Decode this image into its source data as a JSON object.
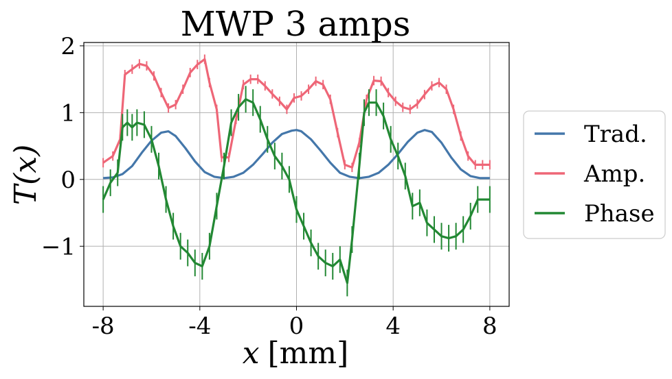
{
  "chart_data": {
    "type": "line",
    "title": "MWP 3 amps",
    "xlabel_var": "x",
    "xlabel_unit": "[mm]",
    "ylabel": "T(x)",
    "xlim": [
      -8.8,
      8.8
    ],
    "ylim": [
      -1.9,
      2.05
    ],
    "xticks": [
      -8,
      -4,
      0,
      4,
      8
    ],
    "xtick_labels": [
      "-8",
      "-4",
      "0",
      "4",
      "8"
    ],
    "yticks": [
      -1,
      0,
      1,
      2
    ],
    "ytick_labels": [
      "−1",
      "0",
      "1",
      "2"
    ],
    "grid": true,
    "legend_position": "outside right",
    "series": [
      {
        "name": "Trad.",
        "color": "#4477aa",
        "x": [
          -8,
          -7.6,
          -7.2,
          -6.8,
          -6.4,
          -6.0,
          -5.6,
          -5.3,
          -5.0,
          -4.6,
          -4.2,
          -3.8,
          -3.4,
          -3.0,
          -2.6,
          -2.2,
          -1.8,
          -1.4,
          -1.0,
          -0.6,
          -0.2,
          0,
          0.2,
          0.6,
          1.0,
          1.4,
          1.8,
          2.2,
          2.6,
          3.0,
          3.4,
          3.8,
          4.2,
          4.6,
          5.0,
          5.3,
          5.6,
          6.0,
          6.4,
          6.8,
          7.2,
          7.6,
          8
        ],
        "values": [
          0.02,
          0.03,
          0.08,
          0.2,
          0.4,
          0.58,
          0.7,
          0.72,
          0.65,
          0.47,
          0.27,
          0.11,
          0.04,
          0.02,
          0.04,
          0.1,
          0.22,
          0.38,
          0.55,
          0.68,
          0.73,
          0.74,
          0.72,
          0.6,
          0.43,
          0.25,
          0.1,
          0.04,
          0.02,
          0.04,
          0.1,
          0.22,
          0.38,
          0.56,
          0.7,
          0.74,
          0.71,
          0.55,
          0.33,
          0.15,
          0.05,
          0.02,
          0.02
        ]
      },
      {
        "name": "Amp.",
        "color": "#ee6677",
        "x": [
          -8,
          -7.6,
          -7.3,
          -7.1,
          -6.8,
          -6.5,
          -6.2,
          -5.9,
          -5.6,
          -5.3,
          -5.0,
          -4.7,
          -4.4,
          -4.1,
          -3.8,
          -3.6,
          -3.3,
          -3.1,
          -2.8,
          -2.5,
          -2.2,
          -1.9,
          -1.6,
          -1.3,
          -1.0,
          -0.7,
          -0.4,
          -0.1,
          0.2,
          0.5,
          0.8,
          1.1,
          1.4,
          1.7,
          2.0,
          2.3,
          2.6,
          2.9,
          3.2,
          3.5,
          3.8,
          4.1,
          4.4,
          4.7,
          5.0,
          5.3,
          5.6,
          5.9,
          6.2,
          6.5,
          6.8,
          7.1,
          7.4,
          7.7,
          8
        ],
        "values": [
          0.25,
          0.35,
          0.6,
          1.57,
          1.65,
          1.73,
          1.7,
          1.55,
          1.3,
          1.07,
          1.12,
          1.35,
          1.6,
          1.72,
          1.8,
          1.45,
          1.05,
          0.33,
          0.33,
          0.9,
          1.42,
          1.5,
          1.5,
          1.4,
          1.28,
          1.17,
          1.05,
          1.22,
          1.25,
          1.35,
          1.47,
          1.42,
          1.2,
          0.7,
          0.22,
          0.18,
          0.55,
          1.2,
          1.48,
          1.47,
          1.3,
          1.17,
          1.08,
          1.05,
          1.13,
          1.27,
          1.4,
          1.45,
          1.35,
          1.05,
          0.65,
          0.35,
          0.22,
          0.22,
          0.22
        ]
      },
      {
        "name": "Phase",
        "color": "#228833",
        "x": [
          -8,
          -7.7,
          -7.4,
          -7.2,
          -7.0,
          -6.8,
          -6.6,
          -6.3,
          -6.0,
          -5.7,
          -5.4,
          -5.1,
          -4.8,
          -4.5,
          -4.2,
          -3.9,
          -3.6,
          -3.3,
          -3.0,
          -2.7,
          -2.4,
          -2.1,
          -1.8,
          -1.5,
          -1.2,
          -0.9,
          -0.6,
          -0.3,
          0,
          0.3,
          0.6,
          0.9,
          1.2,
          1.5,
          1.8,
          2.1,
          2.3,
          2.6,
          2.8,
          3.0,
          3.3,
          3.6,
          3.9,
          4.2,
          4.5,
          4.8,
          5.1,
          5.4,
          5.7,
          6.0,
          6.3,
          6.6,
          6.9,
          7.2,
          7.5,
          8
        ],
        "values": [
          -0.3,
          -0.05,
          0.1,
          0.78,
          0.85,
          0.78,
          0.85,
          0.82,
          0.6,
          0.2,
          -0.3,
          -0.7,
          -1.0,
          -1.1,
          -1.25,
          -1.3,
          -1.0,
          -0.4,
          0.2,
          0.85,
          1.08,
          1.2,
          1.15,
          0.9,
          0.6,
          0.35,
          0.2,
          0.0,
          -0.45,
          -0.7,
          -0.95,
          -1.15,
          -1.25,
          -1.3,
          -1.2,
          -1.55,
          -0.9,
          0.2,
          1.0,
          1.15,
          1.15,
          0.95,
          0.6,
          0.35,
          0.05,
          -0.4,
          -0.35,
          -0.65,
          -0.75,
          -0.85,
          -0.88,
          -0.85,
          -0.75,
          -0.55,
          -0.3,
          -0.3
        ]
      }
    ]
  }
}
